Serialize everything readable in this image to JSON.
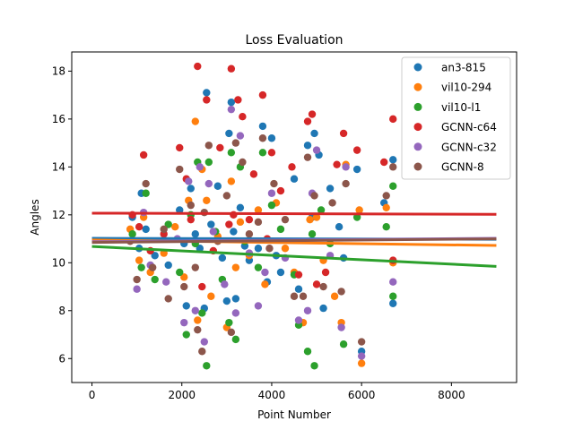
{
  "chart_data": {
    "type": "scatter",
    "title": "Loss Evaluation",
    "xlabel": "Point Number",
    "ylabel": "Angles",
    "xlim": [
      -450,
      9450
    ],
    "ylim": [
      5.0,
      18.8
    ],
    "xticks": [
      0,
      2000,
      4000,
      6000,
      8000
    ],
    "yticks": [
      6,
      8,
      10,
      12,
      14,
      16,
      18
    ],
    "grid": false,
    "legend_position": "top-right",
    "series": [
      {
        "name": "an3-815",
        "color": "#1f77b4",
        "points": [
          [
            900,
            11.9
          ],
          [
            1050,
            10.6
          ],
          [
            1100,
            12.9
          ],
          [
            1200,
            11.4
          ],
          [
            1400,
            10.3
          ],
          [
            1700,
            9.9
          ],
          [
            1950,
            12.2
          ],
          [
            2050,
            10.8
          ],
          [
            2100,
            8.2
          ],
          [
            2200,
            13.1
          ],
          [
            2300,
            11.2
          ],
          [
            2400,
            10.6
          ],
          [
            2500,
            8.1
          ],
          [
            2550,
            17.1
          ],
          [
            2650,
            11.6
          ],
          [
            2800,
            13.2
          ],
          [
            2900,
            10.2
          ],
          [
            3000,
            8.4
          ],
          [
            3050,
            15.4
          ],
          [
            3100,
            16.7
          ],
          [
            3150,
            11.3
          ],
          [
            3200,
            8.5
          ],
          [
            3300,
            12.3
          ],
          [
            3400,
            10.7
          ],
          [
            3500,
            10.1
          ],
          [
            3700,
            10.6
          ],
          [
            3800,
            15.7
          ],
          [
            3900,
            9.2
          ],
          [
            4000,
            15.2
          ],
          [
            4100,
            10.3
          ],
          [
            4200,
            9.6
          ],
          [
            4500,
            13.5
          ],
          [
            4600,
            8.9
          ],
          [
            4800,
            14.9
          ],
          [
            4900,
            11.9
          ],
          [
            4950,
            15.4
          ],
          [
            5050,
            14.5
          ],
          [
            5150,
            8.1
          ],
          [
            5300,
            13.1
          ],
          [
            5500,
            11.5
          ],
          [
            5600,
            10.2
          ],
          [
            5900,
            13.9
          ],
          [
            6000,
            6.3
          ],
          [
            6500,
            12.5
          ],
          [
            6700,
            14.3
          ],
          [
            6700,
            8.3
          ]
        ]
      },
      {
        "name": "vil10-294",
        "color": "#ff7f0e",
        "points": [
          [
            850,
            11.4
          ],
          [
            1050,
            10.1
          ],
          [
            1150,
            11.9
          ],
          [
            1300,
            9.6
          ],
          [
            1600,
            10.4
          ],
          [
            1850,
            11.5
          ],
          [
            2050,
            9.4
          ],
          [
            2150,
            12.6
          ],
          [
            2300,
            15.9
          ],
          [
            2350,
            7.6
          ],
          [
            2450,
            13.9
          ],
          [
            2550,
            12.6
          ],
          [
            2650,
            8.6
          ],
          [
            2800,
            11.1
          ],
          [
            3000,
            7.3
          ],
          [
            3100,
            13.4
          ],
          [
            3200,
            9.8
          ],
          [
            3300,
            11.7
          ],
          [
            3500,
            10.3
          ],
          [
            3700,
            12.2
          ],
          [
            3850,
            9.1
          ],
          [
            4100,
            12.5
          ],
          [
            4300,
            10.6
          ],
          [
            4500,
            9.6
          ],
          [
            4700,
            7.5
          ],
          [
            4850,
            11.8
          ],
          [
            5000,
            11.9
          ],
          [
            5150,
            10.1
          ],
          [
            5400,
            8.6
          ],
          [
            5550,
            7.5
          ],
          [
            5650,
            14.1
          ],
          [
            5950,
            12.2
          ],
          [
            6000,
            5.8
          ],
          [
            6550,
            12.3
          ],
          [
            6700,
            10.0
          ]
        ]
      },
      {
        "name": "vil10-l1",
        "color": "#2ca02c",
        "points": [
          [
            900,
            11.2
          ],
          [
            1100,
            9.8
          ],
          [
            1200,
            12.9
          ],
          [
            1400,
            9.3
          ],
          [
            1700,
            11.6
          ],
          [
            1950,
            9.6
          ],
          [
            2100,
            7.0
          ],
          [
            2200,
            12.0
          ],
          [
            2300,
            10.8
          ],
          [
            2350,
            14.2
          ],
          [
            2450,
            7.9
          ],
          [
            2550,
            5.7
          ],
          [
            2600,
            14.2
          ],
          [
            2750,
            11.3
          ],
          [
            2900,
            9.3
          ],
          [
            3050,
            7.5
          ],
          [
            3100,
            14.6
          ],
          [
            3200,
            6.8
          ],
          [
            3300,
            14.0
          ],
          [
            3400,
            10.9
          ],
          [
            3700,
            9.8
          ],
          [
            3800,
            14.6
          ],
          [
            4000,
            12.4
          ],
          [
            4200,
            11.4
          ],
          [
            4500,
            9.5
          ],
          [
            4600,
            7.4
          ],
          [
            4800,
            6.3
          ],
          [
            4900,
            11.2
          ],
          [
            4950,
            5.7
          ],
          [
            5100,
            12.2
          ],
          [
            5300,
            10.8
          ],
          [
            5600,
            6.6
          ],
          [
            5900,
            11.9
          ],
          [
            6550,
            11.5
          ],
          [
            6700,
            13.2
          ],
          [
            6700,
            8.6
          ]
        ]
      },
      {
        "name": "GCNN-c64",
        "color": "#d62728",
        "points": [
          [
            900,
            12.0
          ],
          [
            1050,
            11.5
          ],
          [
            1150,
            14.5
          ],
          [
            1300,
            10.5
          ],
          [
            1600,
            11.2
          ],
          [
            1950,
            14.8
          ],
          [
            2100,
            13.5
          ],
          [
            2200,
            11.8
          ],
          [
            2350,
            18.2
          ],
          [
            2450,
            9.0
          ],
          [
            2550,
            16.8
          ],
          [
            2700,
            10.5
          ],
          [
            2850,
            14.8
          ],
          [
            3050,
            11.6
          ],
          [
            3100,
            18.1
          ],
          [
            3150,
            12.0
          ],
          [
            3250,
            16.8
          ],
          [
            3350,
            16.1
          ],
          [
            3500,
            11.8
          ],
          [
            3600,
            13.7
          ],
          [
            3800,
            17.0
          ],
          [
            3900,
            11.0
          ],
          [
            4000,
            14.6
          ],
          [
            4200,
            13.0
          ],
          [
            4450,
            14.0
          ],
          [
            4600,
            9.5
          ],
          [
            4800,
            15.9
          ],
          [
            4900,
            16.2
          ],
          [
            5000,
            9.1
          ],
          [
            5200,
            9.6
          ],
          [
            5450,
            14.1
          ],
          [
            5600,
            15.4
          ],
          [
            5900,
            14.7
          ],
          [
            6500,
            14.2
          ],
          [
            6700,
            16.0
          ],
          [
            6700,
            10.1
          ]
        ]
      },
      {
        "name": "GCNN-c32",
        "color": "#9467bd",
        "points": [
          [
            1000,
            8.9
          ],
          [
            1150,
            12.1
          ],
          [
            1300,
            9.9
          ],
          [
            1650,
            9.2
          ],
          [
            1900,
            11.0
          ],
          [
            2050,
            7.5
          ],
          [
            2150,
            13.4
          ],
          [
            2300,
            8.0
          ],
          [
            2400,
            14.0
          ],
          [
            2500,
            6.7
          ],
          [
            2600,
            13.3
          ],
          [
            2700,
            11.3
          ],
          [
            2950,
            9.1
          ],
          [
            3100,
            16.4
          ],
          [
            3200,
            7.9
          ],
          [
            3300,
            15.3
          ],
          [
            3500,
            10.4
          ],
          [
            3700,
            8.2
          ],
          [
            3850,
            9.6
          ],
          [
            4000,
            12.9
          ],
          [
            4300,
            10.2
          ],
          [
            4600,
            7.6
          ],
          [
            4800,
            8.0
          ],
          [
            4900,
            12.9
          ],
          [
            5000,
            14.7
          ],
          [
            5300,
            10.3
          ],
          [
            5550,
            7.3
          ],
          [
            5650,
            14.0
          ],
          [
            6000,
            6.1
          ],
          [
            6700,
            9.2
          ]
        ]
      },
      {
        "name": "GCNN-8",
        "color": "#8c564b",
        "points": [
          [
            850,
            10.9
          ],
          [
            1000,
            9.3
          ],
          [
            1200,
            13.3
          ],
          [
            1350,
            9.8
          ],
          [
            1600,
            11.4
          ],
          [
            1700,
            8.5
          ],
          [
            1950,
            13.9
          ],
          [
            2050,
            9.0
          ],
          [
            2200,
            12.4
          ],
          [
            2300,
            9.8
          ],
          [
            2350,
            7.2
          ],
          [
            2450,
            6.3
          ],
          [
            2500,
            12.1
          ],
          [
            2600,
            14.9
          ],
          [
            2800,
            10.9
          ],
          [
            3000,
            12.8
          ],
          [
            3100,
            7.1
          ],
          [
            3200,
            15.0
          ],
          [
            3350,
            14.2
          ],
          [
            3500,
            11.2
          ],
          [
            3700,
            11.7
          ],
          [
            3800,
            15.2
          ],
          [
            3950,
            10.6
          ],
          [
            4050,
            13.3
          ],
          [
            4300,
            11.8
          ],
          [
            4500,
            8.6
          ],
          [
            4700,
            8.6
          ],
          [
            4800,
            14.4
          ],
          [
            4950,
            12.8
          ],
          [
            5150,
            9.0
          ],
          [
            5350,
            12.5
          ],
          [
            5550,
            8.8
          ],
          [
            5650,
            13.3
          ],
          [
            6000,
            6.7
          ],
          [
            6550,
            12.8
          ],
          [
            6700,
            14.0
          ]
        ]
      }
    ],
    "trend_lines": [
      {
        "series": "an3-815",
        "color": "#1f77b4",
        "x": [
          0,
          9000
        ],
        "y": [
          11.02,
          10.98
        ]
      },
      {
        "series": "vil10-294",
        "color": "#ff7f0e",
        "x": [
          0,
          9000
        ],
        "y": [
          10.95,
          10.72
        ]
      },
      {
        "series": "vil10-l1",
        "color": "#2ca02c",
        "x": [
          0,
          9000
        ],
        "y": [
          10.68,
          9.85
        ]
      },
      {
        "series": "GCNN-c64",
        "color": "#d62728",
        "x": [
          0,
          9000
        ],
        "y": [
          12.07,
          12.02
        ]
      },
      {
        "series": "GCNN-c32",
        "color": "#9467bd",
        "x": [
          0,
          9000
        ],
        "y": [
          10.88,
          11.02
        ]
      },
      {
        "series": "GCNN-8",
        "color": "#8c564b",
        "x": [
          0,
          9000
        ],
        "y": [
          10.85,
          11.0
        ]
      }
    ]
  }
}
